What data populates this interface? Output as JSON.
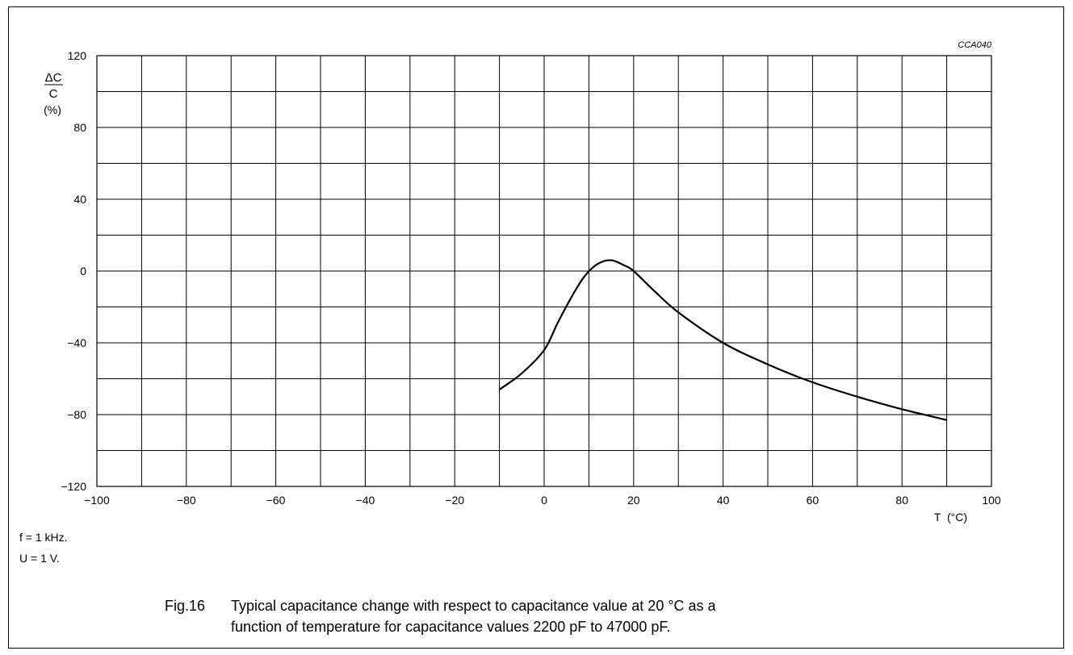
{
  "chart_data": {
    "type": "line",
    "code": "CCA040",
    "ylabel": {
      "numerator": "ΔC",
      "denominator": "C",
      "unit": "(%)"
    },
    "xlabel": "T  (°C)",
    "xlim": [
      -100,
      100
    ],
    "ylim": [
      -120,
      120
    ],
    "x_major_ticks": [
      -100,
      -80,
      -60,
      -40,
      -20,
      0,
      20,
      40,
      60,
      80,
      100
    ],
    "x_tick_labels": [
      "−100",
      "−80",
      "−60",
      "−40",
      "−20",
      "0",
      "20",
      "40",
      "60",
      "80",
      "100"
    ],
    "y_major_ticks": [
      120,
      80,
      40,
      0,
      -40,
      -80,
      -120
    ],
    "y_tick_labels": [
      "120",
      "80",
      "40",
      "0",
      "−40",
      "−80",
      "−120"
    ],
    "x_grid_step": 10,
    "y_grid_step": 20,
    "grid": true,
    "series": [
      {
        "x": [
          -10,
          -5,
          0,
          3,
          6,
          9,
          12,
          15,
          18,
          20,
          25,
          30,
          40,
          50,
          60,
          70,
          80,
          90
        ],
        "y": [
          -66,
          -57,
          -44,
          -29,
          -15,
          -3,
          4,
          6,
          3,
          0,
          -12,
          -23,
          -40,
          -52,
          -62,
          -70,
          -77,
          -83
        ]
      }
    ]
  },
  "notes": [
    "f = 1 kHz.",
    "U = 1 V."
  ],
  "caption": {
    "number": "Fig.16",
    "line1": "Typical capacitance change with respect to capacitance value at 20 °C as a",
    "line2": "function of temperature for capacitance values 2200 pF to 47000 pF."
  }
}
